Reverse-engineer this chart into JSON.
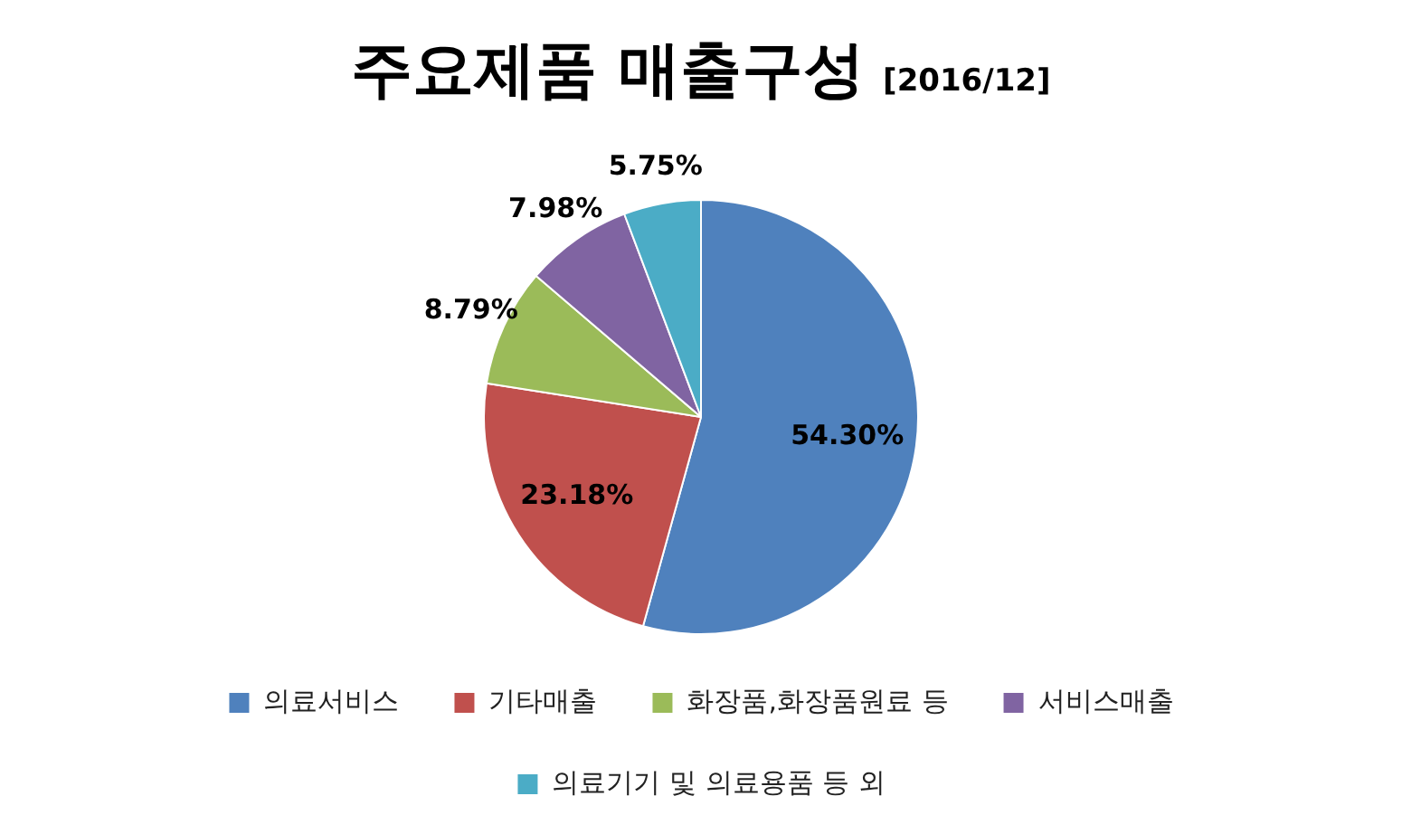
{
  "chart_data": {
    "type": "pie",
    "title": "주요제품 매출구성",
    "subtitle": "[2016/12]",
    "categories": [
      "의료서비스",
      "기타매출",
      "화장품,화장품원료 등",
      "서비스매출",
      "의료기기 및 의료용품 등 외"
    ],
    "values": [
      54.3,
      23.18,
      8.79,
      7.98,
      5.75
    ],
    "colors": [
      "#4f81bd",
      "#c0504d",
      "#9bbb59",
      "#8064a2",
      "#4bacc6"
    ],
    "value_labels": [
      "54.30%",
      "23.18%",
      "8.79%",
      "7.98%",
      "5.75%"
    ],
    "legend": "bottom"
  }
}
